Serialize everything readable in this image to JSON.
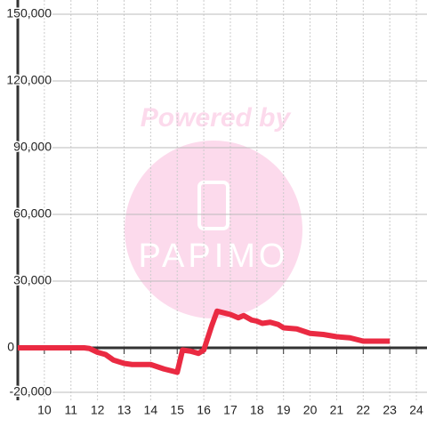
{
  "chart_data": {
    "type": "line",
    "watermark": [
      "Powered by",
      "PAPIMO"
    ],
    "x": [
      9,
      11.5,
      11.7,
      12,
      12.3,
      12.6,
      13,
      13.3,
      14,
      14.5,
      15,
      15.2,
      15.5,
      15.8,
      16,
      16.3,
      16.5,
      17,
      17.3,
      17.5,
      17.8,
      18,
      18.2,
      18.5,
      18.8,
      19,
      19.5,
      20,
      20.5,
      21,
      21.5,
      22,
      23
    ],
    "series": [
      {
        "color": "#ea2a42",
        "values": [
          0,
          0,
          -300,
          -2000,
          -3000,
          -5500,
          -7000,
          -7500,
          -7500,
          -9500,
          -11000,
          -1000,
          -1500,
          -2500,
          -1000,
          10000,
          16500,
          15000,
          13500,
          14500,
          12500,
          12000,
          11000,
          11500,
          10500,
          9000,
          8500,
          6500,
          6000,
          5000,
          4500,
          3000,
          3000
        ]
      }
    ],
    "xlim": [
      9,
      24.4
    ],
    "xticks": [
      10,
      11,
      12,
      13,
      14,
      15,
      16,
      17,
      18,
      19,
      20,
      21,
      22,
      23,
      24
    ],
    "ylim": [
      -20000,
      150000
    ],
    "yticks": [
      {
        "value": -20000,
        "label": "-20,000"
      },
      0,
      {
        "value": 30000,
        "label": "30,000"
      },
      {
        "value": 60000,
        "label": "60,000"
      },
      {
        "value": 90000,
        "label": "90,000"
      },
      {
        "value": 120000,
        "label": "120,000"
      },
      {
        "value": 150000,
        "label": "150,000"
      }
    ],
    "grid": true
  }
}
